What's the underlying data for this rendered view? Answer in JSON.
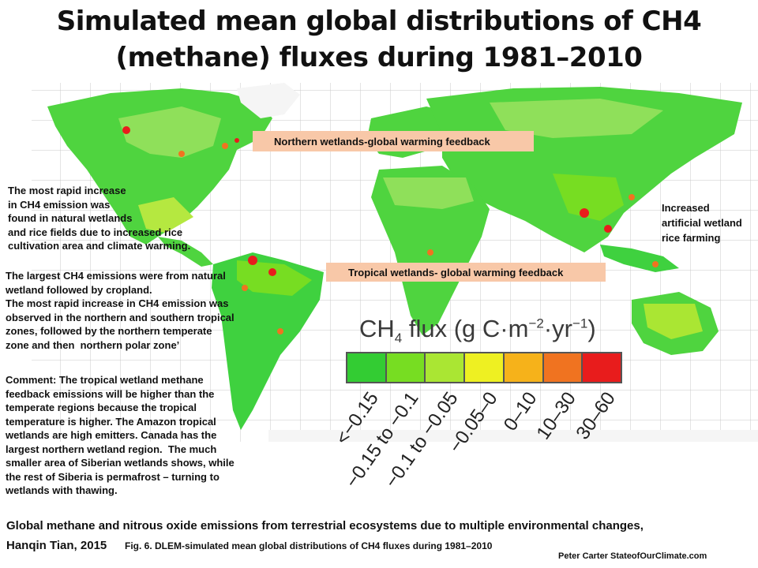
{
  "title": {
    "line1": "Simulated mean global distributions of CH4",
    "line2": "(methane) fluxes during 1981–2010"
  },
  "banners": {
    "northern": "Northern  wetlands-global warming feedback",
    "tropical": "Tropical wetlands- global warming feedback"
  },
  "annotations": {
    "rapid_increase": "The most rapid increase\nin CH4 emission was\nfound in natural wetlands\nand rice fields due to increased rice\ncultivation area and climate warming.",
    "largest": "The largest CH4 emissions were from natural\nwetland followed by cropland.\nThe most rapid increase in CH4 emission was\nobserved in the northern and southern tropical\nzones, followed by the northern temperate\nzone and then  northern polar zone’",
    "comment": "Comment: The tropical wetland methane\nfeedback emissions will be higher than the\ntemperate regions because the tropical\ntemperature is higher. The Amazon tropical\nwetlands are high emitters. Canada has the\nlargest northern wetland region.  The much\nsmaller area of Siberian wetlands shows, while\nthe rest of Siberia is permafrost – turning to\nwetlands with thawing.",
    "rice": "Increased\nartificial wetland\nrice farming"
  },
  "legend": {
    "title_main": "CH",
    "title_sub": "4",
    "title_rest": " flux (g C·m",
    "title_exp1": "−2",
    "title_mid": "·yr",
    "title_exp2": "−1",
    "title_end": ")",
    "classes": [
      {
        "label": "<−0.15",
        "color": "#33cc33"
      },
      {
        "label": "−0.15 to −0.1",
        "color": "#77dd22"
      },
      {
        "label": "−0.1 to −0.05",
        "color": "#aae633"
      },
      {
        "label": "−0.05–0",
        "color": "#eef022"
      },
      {
        "label": "0–10",
        "color": "#f6b21a"
      },
      {
        "label": "10–30",
        "color": "#f07320"
      },
      {
        "label": "30–60",
        "color": "#e81c1c"
      }
    ]
  },
  "footer": {
    "line1": "Global methane and nitrous oxide emissions from terrestrial ecosystems due to multiple environmental changes,",
    "line2": "Hanqin Tian, 2015",
    "caption": "Fig. 6. DLEM-simulated mean global distributions of CH4 fluxes during 1981–2010",
    "credit": "Peter Carter StateofOurClimate.com"
  },
  "colors": {
    "land_green": "#3fd13f",
    "land_light": "#8fe05a",
    "high_flux": "#e81c1c",
    "banner_bg": "#f8c8a8"
  }
}
